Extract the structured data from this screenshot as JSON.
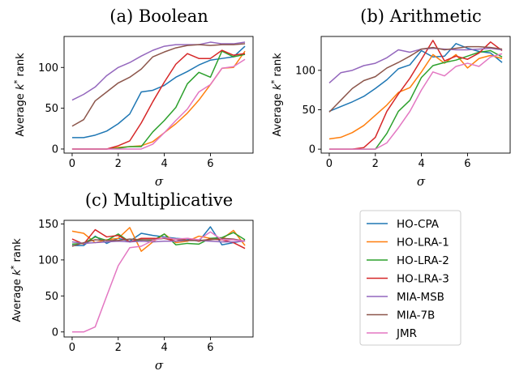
{
  "legend_entries": [
    {
      "name": "HO-CPA",
      "color": "#1f77b4"
    },
    {
      "name": "HO-LRA-1",
      "color": "#ff7f0e"
    },
    {
      "name": "HO-LRA-2",
      "color": "#2ca02c"
    },
    {
      "name": "HO-LRA-3",
      "color": "#d62728"
    },
    {
      "name": "MIA-MSB",
      "color": "#9467bd"
    },
    {
      "name": "MIA-7B",
      "color": "#8c564b"
    },
    {
      "name": "JMR",
      "color": "#e377c2"
    }
  ],
  "chart_data": [
    {
      "type": "line",
      "title": "(a) Boolean",
      "xlabel": "σ",
      "ylabel": "Average k* rank",
      "xlim": [
        -0.35,
        7.85
      ],
      "ylim": [
        -5,
        138
      ],
      "xticks": [
        0,
        2,
        4,
        6
      ],
      "yticks": [
        0,
        50,
        100
      ],
      "x": [
        0,
        0.5,
        1,
        1.5,
        2,
        2.5,
        3,
        3.5,
        4,
        4.5,
        5,
        5.5,
        6,
        6.5,
        7,
        7.5
      ],
      "series": [
        {
          "name": "HO-CPA",
          "values": [
            14,
            14,
            17,
            22,
            31,
            43,
            70,
            72,
            78,
            88,
            95,
            103,
            109,
            111,
            113,
            126
          ]
        },
        {
          "name": "HO-LRA-1",
          "values": [
            0,
            0,
            0,
            0,
            2,
            3,
            4,
            9,
            20,
            31,
            44,
            60,
            79,
            99,
            100,
            120
          ]
        },
        {
          "name": "HO-LRA-2",
          "values": [
            0,
            0,
            0,
            0,
            1,
            3,
            3,
            21,
            35,
            51,
            80,
            94,
            88,
            120,
            113,
            116
          ]
        },
        {
          "name": "HO-LRA-3",
          "values": [
            0,
            0,
            0,
            0,
            4,
            10,
            32,
            58,
            82,
            104,
            117,
            111,
            111,
            121,
            115,
            117
          ]
        },
        {
          "name": "MIA-MSB",
          "values": [
            60,
            67,
            76,
            90,
            100,
            106,
            114,
            121,
            126,
            128,
            128,
            128,
            131,
            129,
            129,
            131
          ]
        },
        {
          "name": "MIA-7B",
          "values": [
            28,
            36,
            59,
            70,
            81,
            88,
            98,
            113,
            119,
            124,
            127,
            128,
            127,
            128,
            128,
            129
          ]
        },
        {
          "name": "JMR",
          "values": [
            0,
            0,
            0,
            0,
            0,
            0,
            0,
            6,
            20,
            35,
            49,
            70,
            79,
            99,
            101,
            110
          ]
        }
      ]
    },
    {
      "type": "line",
      "title": "(b) Arithmetic",
      "xlabel": "σ",
      "ylabel": "Average k* rank",
      "xlim": [
        -0.35,
        7.85
      ],
      "ylim": [
        -5,
        143
      ],
      "xticks": [
        0,
        2,
        4,
        6
      ],
      "yticks": [
        0,
        50,
        100
      ],
      "x": [
        0,
        0.5,
        1,
        1.5,
        2,
        2.5,
        3,
        3.5,
        4,
        4.5,
        5,
        5.5,
        6,
        6.5,
        7,
        7.5
      ],
      "series": [
        {
          "name": "HO-CPA",
          "values": [
            48,
            54,
            60,
            67,
            77,
            88,
            102,
            107,
            125,
            117,
            118,
            134,
            128,
            124,
            122,
            110
          ]
        },
        {
          "name": "HO-LRA-1",
          "values": [
            13,
            15,
            21,
            30,
            43,
            56,
            72,
            78,
            98,
            120,
            109,
            120,
            103,
            115,
            119,
            115
          ]
        },
        {
          "name": "HO-LRA-2",
          "values": [
            0,
            0,
            0,
            0,
            0,
            20,
            48,
            62,
            91,
            106,
            110,
            113,
            118,
            123,
            125,
            117
          ]
        },
        {
          "name": "HO-LRA-3",
          "values": [
            0,
            0,
            0,
            2,
            15,
            48,
            70,
            90,
            114,
            138,
            112,
            118,
            114,
            122,
            136,
            125
          ]
        },
        {
          "name": "MIA-MSB",
          "values": [
            84,
            97,
            100,
            106,
            109,
            116,
            126,
            123,
            127,
            128,
            127,
            126,
            126,
            127,
            128,
            126
          ]
        },
        {
          "name": "MIA-7B",
          "values": [
            47,
            62,
            77,
            87,
            92,
            103,
            110,
            118,
            127,
            129,
            126,
            128,
            130,
            130,
            129,
            127
          ]
        },
        {
          "name": "JMR",
          "values": [
            0,
            0,
            0,
            0,
            0,
            8,
            27,
            48,
            75,
            98,
            93,
            105,
            109,
            105,
            117,
            121
          ]
        }
      ]
    },
    {
      "type": "line",
      "title": "(c) Multiplicative",
      "xlabel": "σ",
      "ylabel": "Average k* rank",
      "xlim": [
        -0.35,
        7.85
      ],
      "ylim": [
        -7,
        155
      ],
      "xticks": [
        0,
        2,
        4,
        6
      ],
      "yticks": [
        0,
        50,
        100,
        150
      ],
      "x": [
        0,
        0.5,
        1,
        1.5,
        2,
        2.5,
        3,
        3.5,
        4,
        4.5,
        5,
        5.5,
        6,
        6.5,
        7,
        7.5
      ],
      "series": [
        {
          "name": "HO-CPA",
          "values": [
            120,
            120,
            133,
            123,
            130,
            126,
            137,
            134,
            132,
            130,
            129,
            126,
            146,
            121,
            124,
            127
          ]
        },
        {
          "name": "HO-LRA-1",
          "values": [
            140,
            137,
            124,
            128,
            130,
            145,
            112,
            125,
            136,
            124,
            126,
            133,
            130,
            129,
            141,
            120
          ]
        },
        {
          "name": "HO-LRA-2",
          "values": [
            122,
            123,
            132,
            127,
            136,
            125,
            128,
            127,
            136,
            121,
            123,
            122,
            130,
            131,
            138,
            128
          ]
        },
        {
          "name": "HO-LRA-3",
          "values": [
            129,
            122,
            142,
            132,
            134,
            125,
            130,
            130,
            130,
            126,
            130,
            126,
            129,
            128,
            124,
            116
          ]
        },
        {
          "name": "MIA-MSB",
          "values": [
            125,
            123,
            124,
            125,
            126,
            125,
            126,
            125,
            126,
            126,
            127,
            127,
            126,
            125,
            125,
            126
          ]
        },
        {
          "name": "MIA-7B",
          "values": [
            119,
            124,
            128,
            127,
            127,
            129,
            128,
            128,
            130,
            129,
            127,
            127,
            128,
            130,
            129,
            126
          ]
        },
        {
          "name": "JMR",
          "values": [
            0,
            0,
            7,
            50,
            92,
            117,
            119,
            127,
            131,
            129,
            130,
            128,
            139,
            128,
            128,
            126
          ]
        }
      ]
    }
  ]
}
